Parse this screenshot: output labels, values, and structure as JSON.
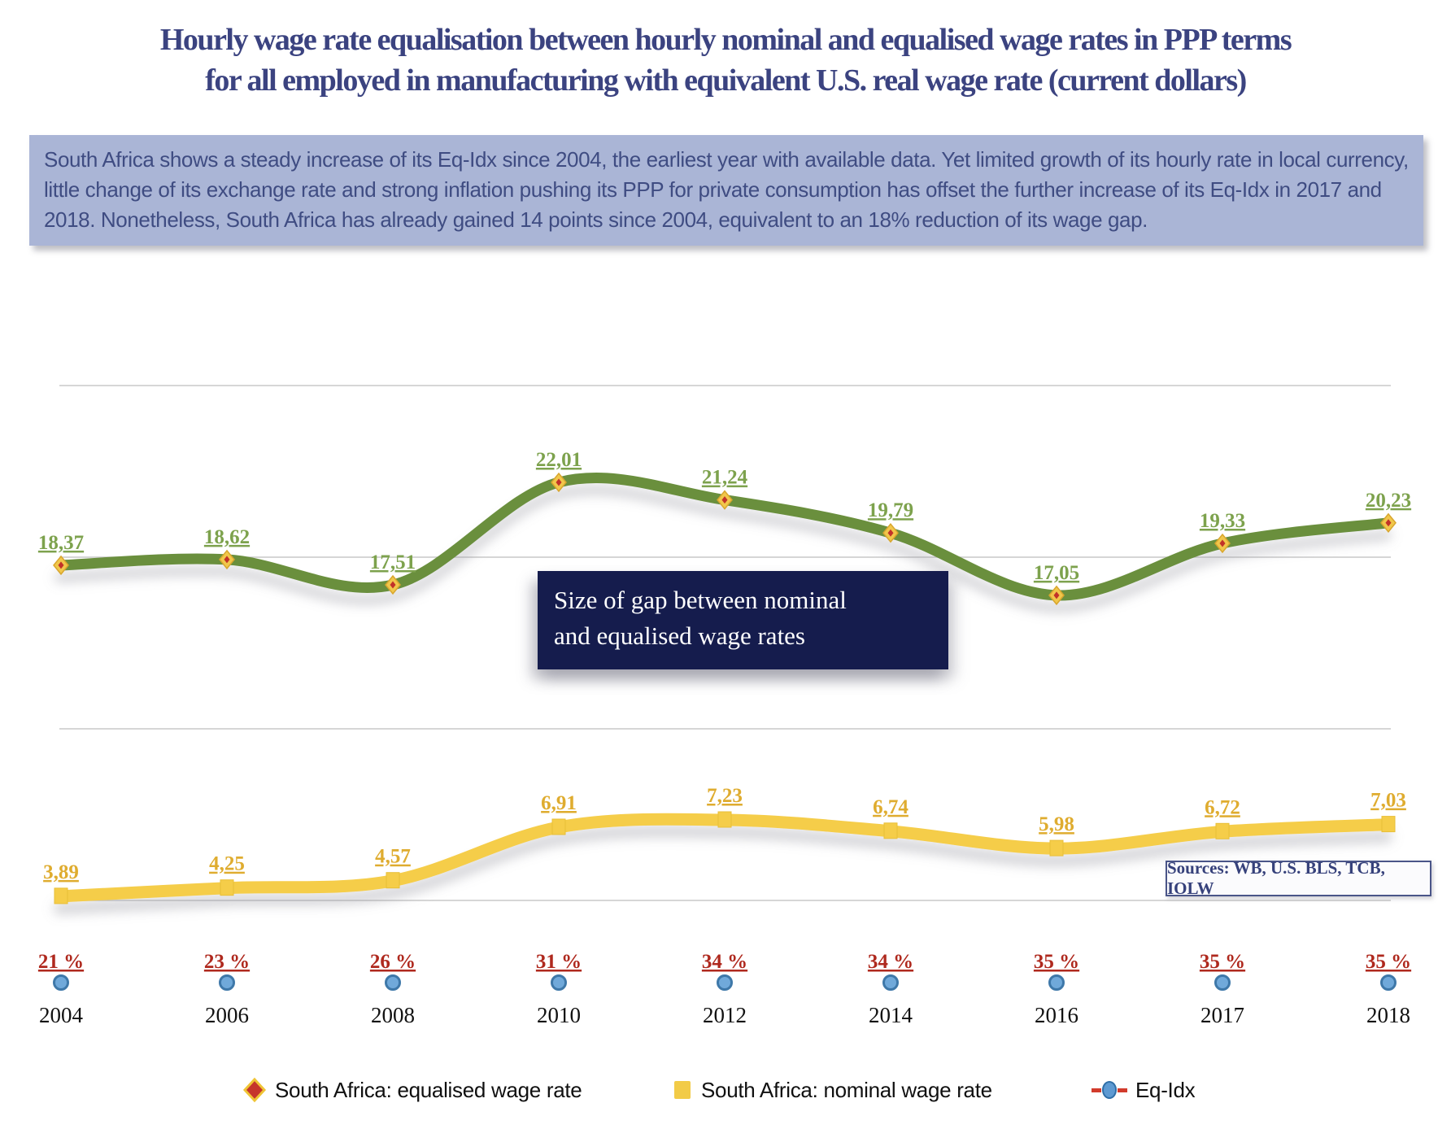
{
  "title": {
    "line1": "Hourly wage rate equalisation between hourly nominal and equalised wage rates in PPP terms",
    "line2": "for all employed in manufacturing with equivalent U.S. real wage rate (current dollars)"
  },
  "summary": {
    "text": "South Africa shows a steady increase of its Eq-Idx since 2004, the earliest year with available data. Yet limited growth of its hourly rate in local currency, little change of its exchange rate and strong inflation pushing its PPP for private consumption has offset the further increase of its Eq-Idx in 2017 and 2018. Nonetheless, South Africa has already gained 14 points since 2004, equivalent to an 18% reduction of its wage gap."
  },
  "callout": {
    "line1": "Size of gap between nominal",
    "line2": "and equalised wage rates"
  },
  "sources": {
    "label": "Sources: WB, U.S. BLS, TCB, IOLW"
  },
  "legend": {
    "items": [
      {
        "label": "South Africa: equalised wage rate",
        "marker": "red-diamond-yellow-border"
      },
      {
        "label": "South Africa: nominal wage rate",
        "marker": "yellow-square"
      },
      {
        "label": "Eq-Idx",
        "marker": "blue-circle-on-red-line"
      }
    ]
  },
  "chart_data": {
    "type": "line",
    "x": [
      "2004",
      "2006",
      "2008",
      "2010",
      "2012",
      "2014",
      "2016",
      "2017",
      "2018"
    ],
    "series": [
      {
        "name": "South Africa: equalised wage rate",
        "color": "#6A8F3E",
        "label_color": "#7DA24D",
        "values": [
          18.37,
          18.62,
          17.51,
          22.01,
          21.24,
          19.79,
          17.05,
          19.33,
          20.23
        ],
        "labels": [
          "18,37",
          "18,62",
          "17,51",
          "22,01",
          "21,24",
          "19,79",
          "17,05",
          "19,33",
          "20,23"
        ]
      },
      {
        "name": "South Africa: nominal wage rate",
        "color": "#F5CD49",
        "label_color": "#DFAC2F",
        "values": [
          3.89,
          4.25,
          4.57,
          6.91,
          7.23,
          6.74,
          5.98,
          6.72,
          7.03
        ],
        "labels": [
          "3,89",
          "4,25",
          "4,57",
          "6,91",
          "7,23",
          "6,74",
          "5,98",
          "6,72",
          "7,03"
        ]
      },
      {
        "name": "Eq-Idx",
        "color": "#D23B2C",
        "marker_fill": "#70A9DA",
        "label_color": "#AF291E",
        "values": [
          21,
          23,
          26,
          31,
          34,
          34,
          35,
          35,
          35
        ],
        "labels": [
          "21 %",
          "23 %",
          "26 %",
          "31 %",
          "34 %",
          "34 %",
          "35 %",
          "35 %",
          "35 %"
        ]
      }
    ],
    "title": "Hourly wage rate equalisation between hourly nominal and equalised wage rates in PPP terms for all employed in manufacturing with equivalent U.S. real wage rate (current dollars)",
    "xlabel": "",
    "ylabel": "",
    "y_axis_visible": false,
    "grid": true,
    "gridline_count": 4,
    "legend_position": "bottom"
  }
}
